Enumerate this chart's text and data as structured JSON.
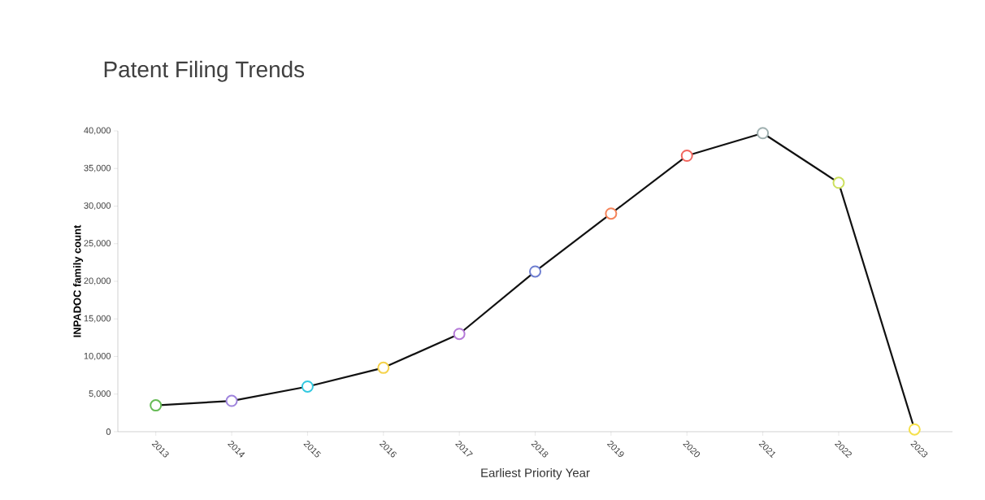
{
  "chart_data": {
    "type": "line",
    "title": "Patent Filing Trends",
    "xlabel": "Earliest Priority Year",
    "ylabel": "INPADOC family count",
    "categories": [
      "2013",
      "2014",
      "2015",
      "2016",
      "2017",
      "2018",
      "2019",
      "2020",
      "2021",
      "2022",
      "2023"
    ],
    "series": [
      {
        "color": "#111111",
        "values": [
          3500,
          4100,
          6000,
          8500,
          13000,
          21300,
          29000,
          36700,
          39700,
          33100,
          300
        ],
        "colors": [
          "#66bb55",
          "#9f84dd",
          "#33c9e0",
          "#f5d24a",
          "#b57ad8",
          "#6f7fd1",
          "#f5845a",
          "#f2665e",
          "#9fb0b0",
          "#cde05e",
          "#f5e04a"
        ]
      }
    ],
    "ylim": [
      0,
      40000
    ],
    "yticks": [
      0,
      {
        "value": 5000,
        "label": "5,000"
      },
      {
        "value": 10000,
        "label": "10,000"
      },
      {
        "value": 15000,
        "label": "15,000"
      },
      {
        "value": 20000,
        "label": "20,000"
      },
      {
        "value": 25000,
        "label": "25,000"
      },
      {
        "value": 30000,
        "label": "30,000"
      },
      {
        "value": 35000,
        "label": "35,000"
      },
      {
        "value": 40000,
        "label": "40,000"
      }
    ],
    "marker": "circle",
    "line_style": "solid",
    "grid": false
  }
}
